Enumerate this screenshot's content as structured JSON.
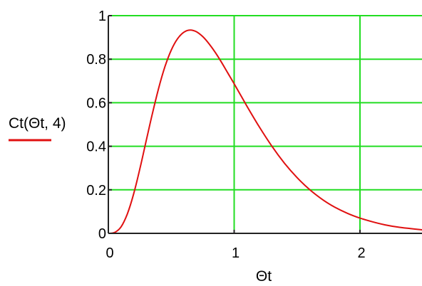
{
  "chart_data": {
    "type": "line",
    "title": "",
    "xlabel": "Θt",
    "ylabel": "Ct(Θt, 4)",
    "xlim": [
      0,
      2.5
    ],
    "ylim": [
      0,
      1
    ],
    "grid": true,
    "grid_color": "#22dd22",
    "x_ticks": [
      0,
      1,
      2
    ],
    "y_ticks": [
      0,
      0.2,
      0.4,
      0.6,
      0.8,
      1
    ],
    "x_tick_labels": [
      "0",
      "1",
      "2"
    ],
    "y_tick_labels": [
      "0",
      "0.2",
      "0.4",
      "0.6",
      "0.8",
      "1"
    ],
    "legend": "left, beside y-axis label",
    "series": [
      {
        "color": "#e01010",
        "x": [
          0,
          0.05,
          0.1,
          0.15,
          0.2,
          0.25,
          0.3,
          0.35,
          0.4,
          0.45,
          0.5,
          0.55,
          0.6,
          0.65,
          0.7,
          0.75,
          0.8,
          0.85,
          0.9,
          0.95,
          1.0,
          1.1,
          1.2,
          1.3,
          1.4,
          1.5,
          1.6,
          1.7,
          1.8,
          1.9,
          2.0,
          2.1,
          2.2,
          2.3,
          2.4,
          2.5
        ],
        "y": [
          0,
          0.004,
          0.029,
          0.088,
          0.179,
          0.295,
          0.423,
          0.55,
          0.667,
          0.766,
          0.842,
          0.894,
          0.924,
          0.934,
          0.926,
          0.904,
          0.871,
          0.831,
          0.785,
          0.736,
          0.687,
          0.586,
          0.489,
          0.4,
          0.322,
          0.256,
          0.201,
          0.156,
          0.12,
          0.092,
          0.07,
          0.053,
          0.039,
          0.029,
          0.022,
          0.016
        ]
      }
    ]
  }
}
